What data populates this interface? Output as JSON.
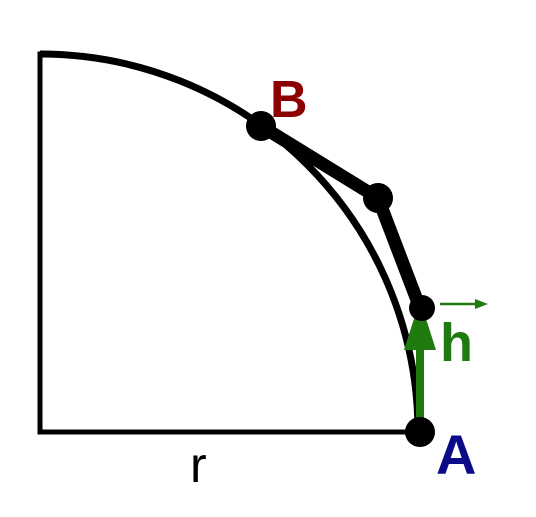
{
  "labels": {
    "point_b": "B",
    "point_a": "A",
    "vector_h": "h",
    "radius": "r"
  },
  "colors": {
    "line": "#000000",
    "label_b": "#8b0000",
    "label_a": "#0b0b8a",
    "vector": "#1f7a10",
    "radius_label": "#000000",
    "background": "#ffffff"
  }
}
